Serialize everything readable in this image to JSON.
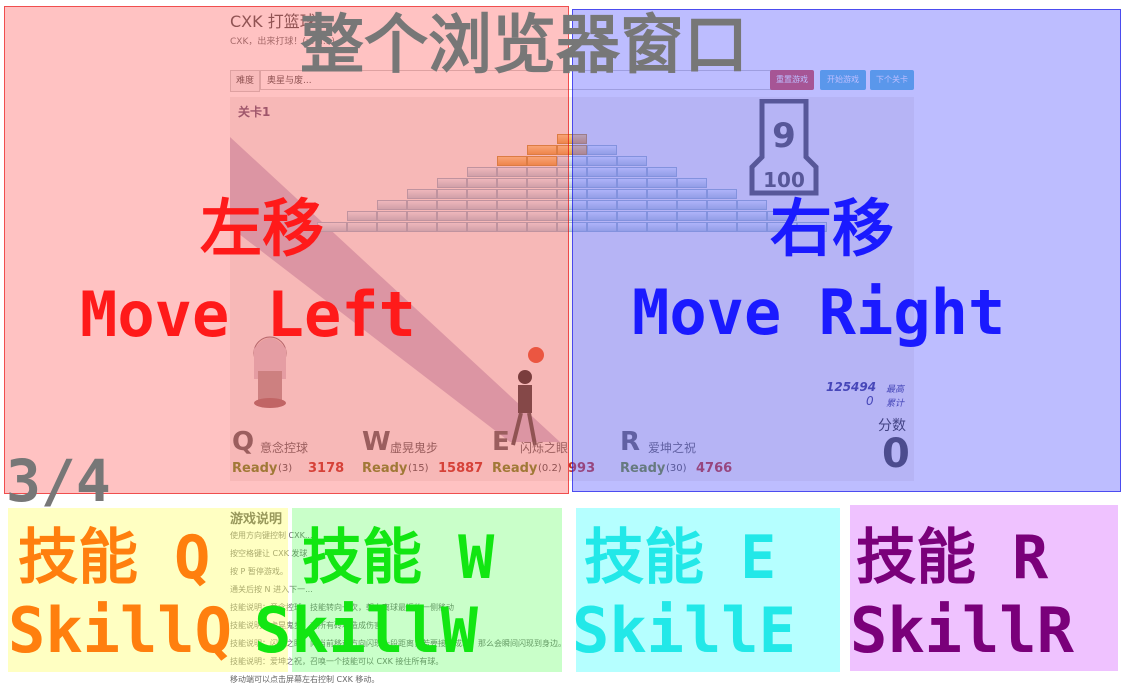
{
  "app": {
    "title": "CXK 打篮球",
    "subtitle": "CXK，出来打球！(umi...)"
  },
  "toolbar": {
    "difficulty_label": "难度",
    "level_select_value": "奥星与废...",
    "reset_label": "重置游戏",
    "start_label": "开始游戏",
    "next_label": "下个关卡"
  },
  "game": {
    "level_label": "关卡1",
    "logo_text": "100",
    "best_score": "125494",
    "best_label": "最高",
    "total_score": "0",
    "total_label": "累计",
    "score_label": "分数",
    "score_value": "0"
  },
  "skills": [
    {
      "key": "Q",
      "name": "意念控球",
      "status": "Ready",
      "cooldown": "(3)",
      "count": "3178",
      "color": "#6f8f2a"
    },
    {
      "key": "W",
      "name": "虚晃鬼步",
      "status": "Ready",
      "cooldown": "(15)",
      "count": "15887",
      "color": "#6f8f2a"
    },
    {
      "key": "E",
      "name": "闪烁之眼",
      "status": "Ready",
      "cooldown": "(0.2)",
      "count": "993",
      "color": "#6f8f2a"
    },
    {
      "key": "R",
      "name": "爱坤之祝",
      "status": "Ready",
      "cooldown": "(30)",
      "count": "4766",
      "color": "#6f8f2a"
    }
  ],
  "instructions": {
    "title": "游戏说明",
    "lines": [
      "使用方向键控制 CXK...",
      "按空格键让 CXK 发球",
      "按 P 暂停游戏。",
      "通关后按 N 进入下一...",
      "技能说明：意念控球，技能转向一次，朝向离球最近的一侧移动",
      "技能说明：虚晃鬼步，对所有砖块造成伤害。",
      "技能说明：闪烁之眼，向当前移动方向闪现一段距离，若要接球成功，那么会瞬间闪现到身边。",
      "技能说明：爱坤之祝，召唤一个技能可以 CXK 接住所有球。",
      "移动端可以点击屏幕左右控制 CXK 移动。"
    ]
  },
  "overlay": {
    "window_title": "整个浏览器窗口",
    "page_counter": "3/4",
    "left_cn": "左移",
    "left_en": "Move Left",
    "right_cn": "右移",
    "right_en": "Move Right",
    "q_cn": "技能 Q",
    "q_en": "SkillQ",
    "w_cn": "技能 W",
    "w_en": "SkillW",
    "e_cn": "技能 E",
    "e_en": "SkillE",
    "r_cn": "技能 R",
    "r_en": "SkillR"
  },
  "colors": {
    "left_zone": "#ff5050",
    "right_zone": "#5a5aff",
    "skill_q": "#ff7f0e",
    "skill_w": "#12e612",
    "skill_e": "#22e8e8",
    "skill_r": "#7a007a"
  }
}
